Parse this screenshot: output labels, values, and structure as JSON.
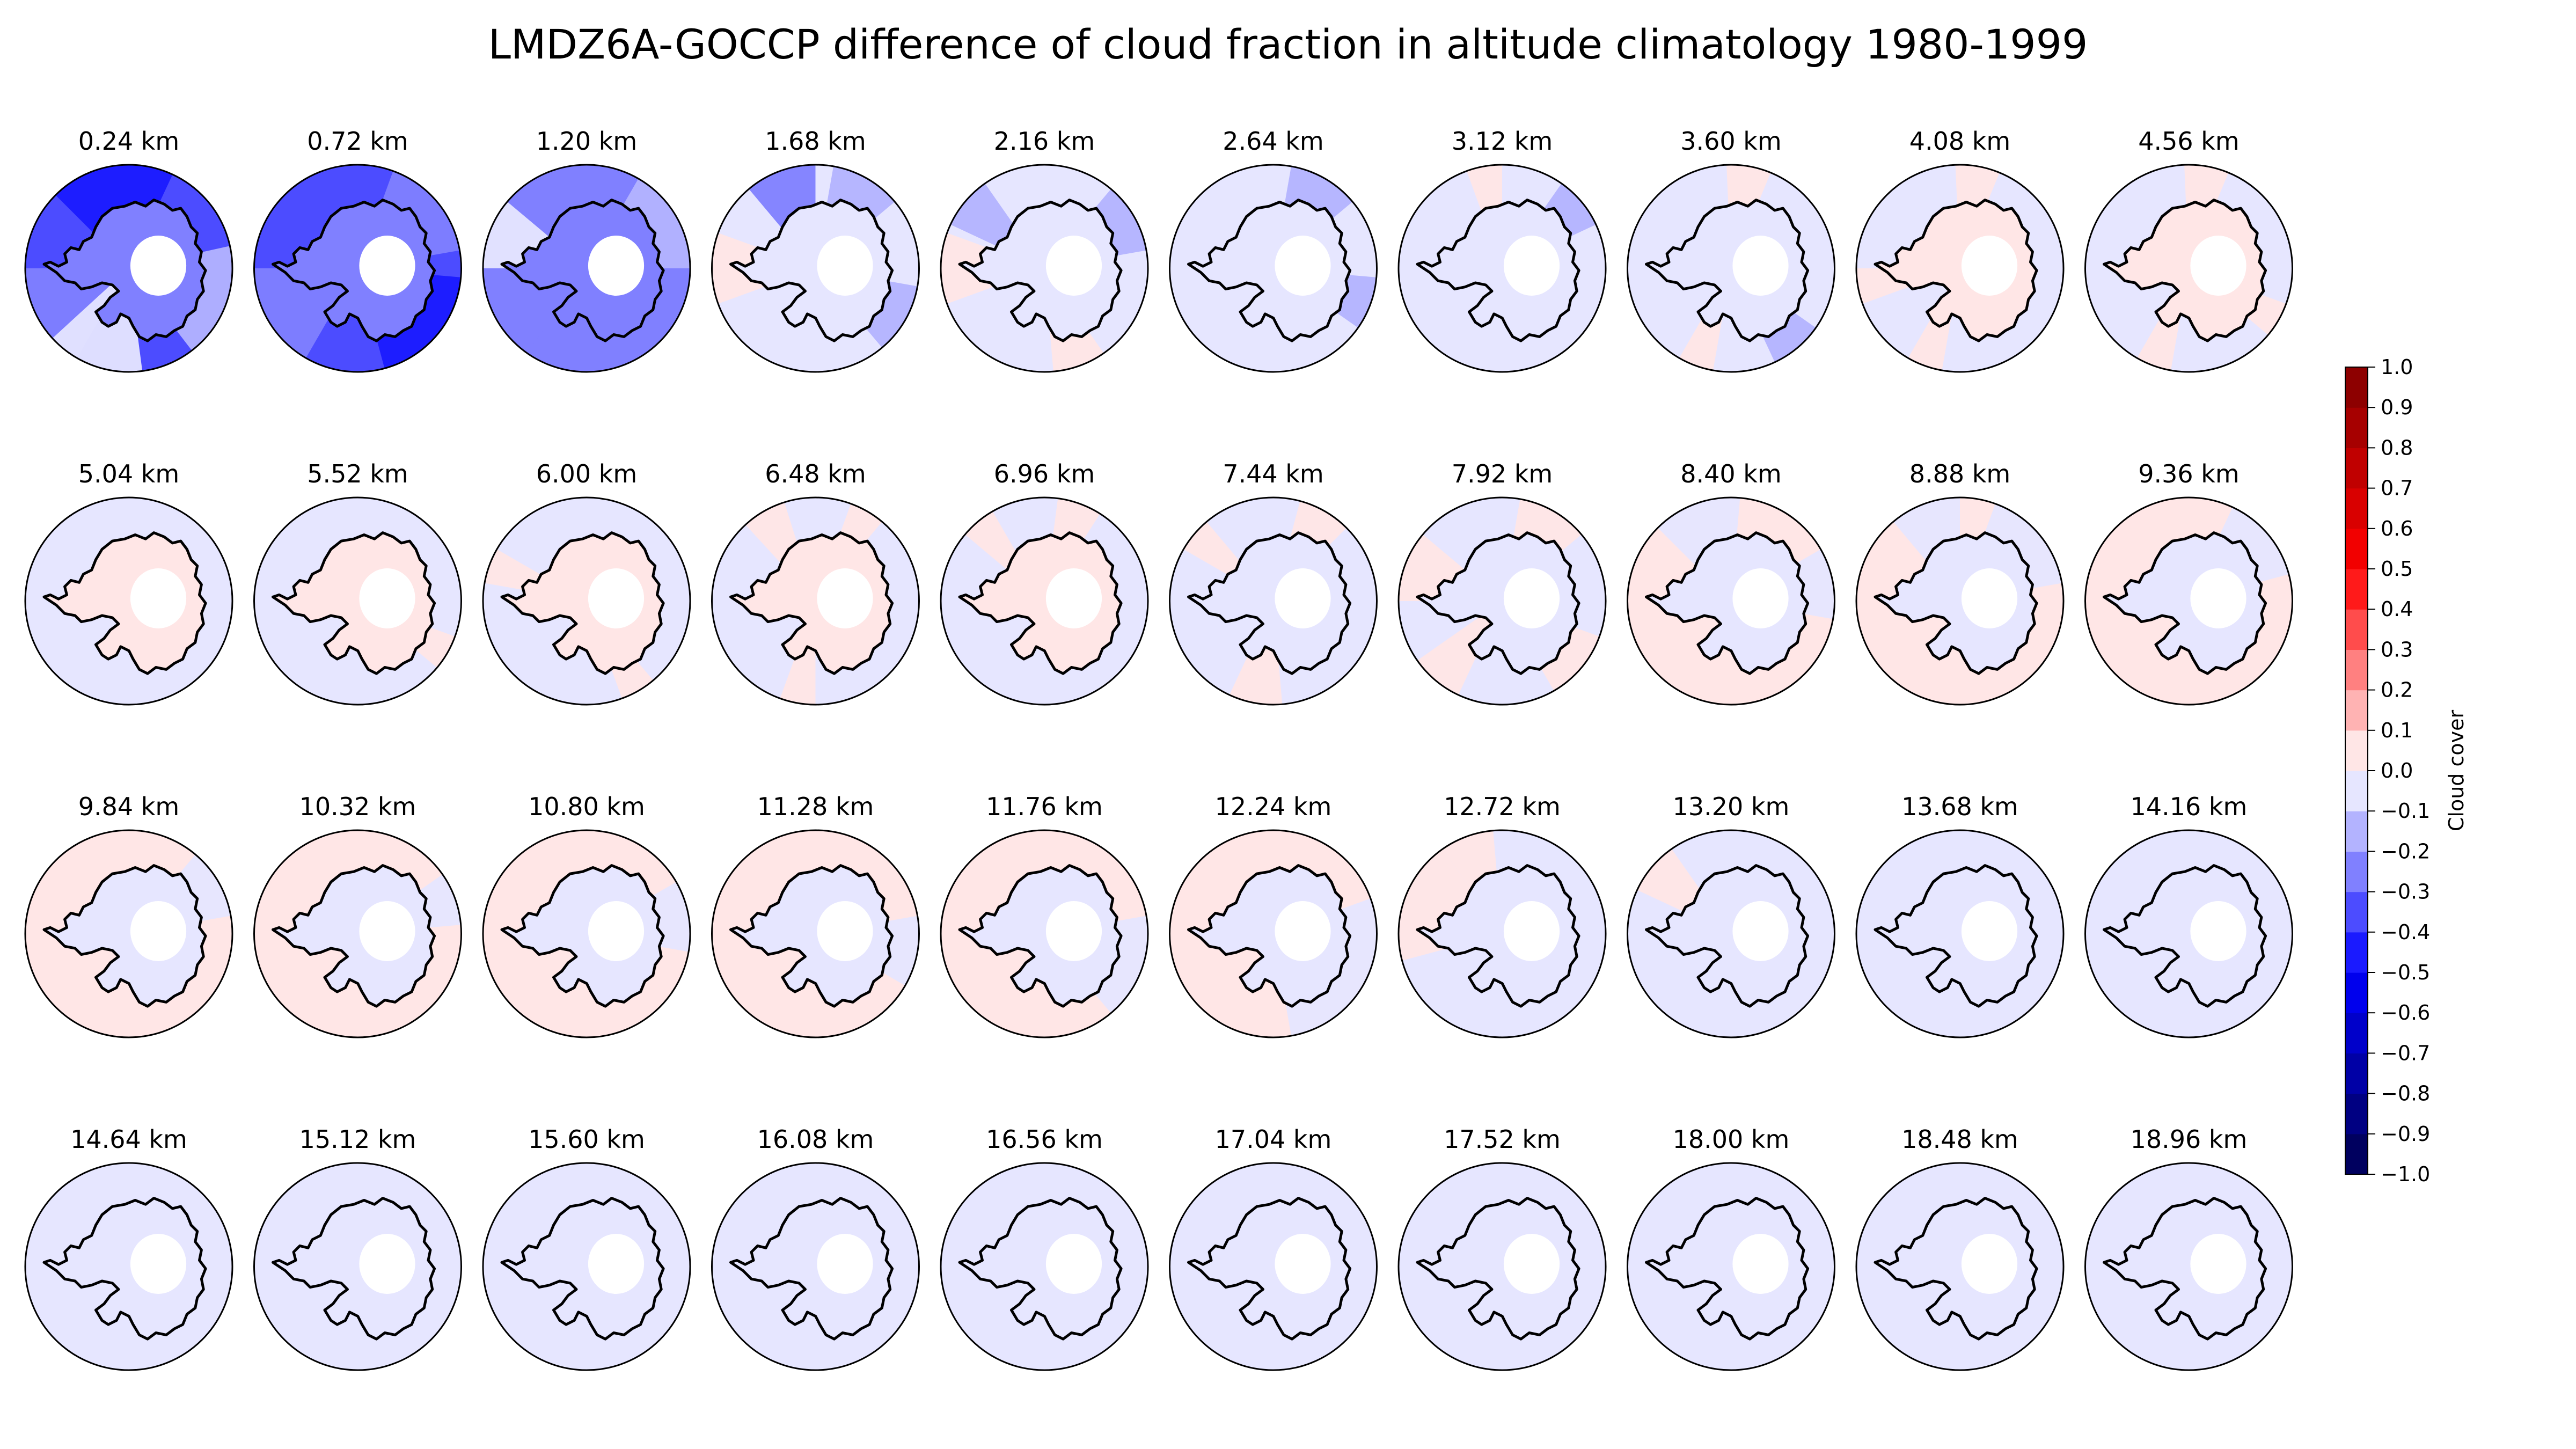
{
  "chart_data": {
    "type": "heatmap",
    "title": "LMDZ6A-GOCCP difference of cloud fraction in altitude climatology 1980-1999",
    "projection": "south-polar",
    "grid_rows": 4,
    "grid_cols": 10,
    "panels": [
      {
        "label": "0.24 km",
        "background": -0.35,
        "inner": -0.3,
        "patches": [
          [
            260,
            70,
            -0.45
          ],
          [
            330,
            55,
            -0.35
          ],
          [
            150,
            60,
            -0.25
          ],
          [
            20,
            65,
            -0.15
          ],
          [
            110,
            55,
            -0.05
          ]
        ]
      },
      {
        "label": "0.72 km",
        "background": -0.35,
        "inner": -0.3,
        "patches": [
          [
            260,
            70,
            -0.4
          ],
          [
            320,
            60,
            -0.3
          ],
          [
            150,
            60,
            -0.25
          ],
          [
            40,
            70,
            -0.45
          ]
        ]
      },
      {
        "label": "1.20 km",
        "background": -0.25,
        "inner": -0.25,
        "patches": [
          [
            330,
            60,
            -0.15
          ],
          [
            200,
            40,
            -0.05
          ],
          [
            100,
            50,
            -0.25
          ]
        ]
      },
      {
        "label": "1.68 km",
        "background": -0.05,
        "inner": -0.1,
        "patches": [
          [
            180,
            40,
            0.08
          ],
          [
            250,
            40,
            -0.25
          ],
          [
            300,
            40,
            -0.15
          ],
          [
            30,
            40,
            -0.2
          ]
        ]
      },
      {
        "label": "2.16 km",
        "background": -0.05,
        "inner": -0.1,
        "patches": [
          [
            180,
            40,
            0.08
          ],
          [
            330,
            40,
            -0.2
          ],
          [
            220,
            30,
            -0.2
          ],
          [
            70,
            30,
            0.08
          ]
        ]
      },
      {
        "label": "2.64 km",
        "background": -0.05,
        "inner": -0.05,
        "patches": [
          [
            300,
            40,
            -0.15
          ],
          [
            20,
            30,
            -0.15
          ]
        ]
      },
      {
        "label": "3.12 km",
        "background": -0.05,
        "inner": -0.05,
        "patches": [
          [
            260,
            20,
            0.08
          ],
          [
            320,
            30,
            -0.15
          ]
        ]
      },
      {
        "label": "3.60 km",
        "background": -0.05,
        "inner": -0.05,
        "patches": [
          [
            280,
            25,
            0.08
          ],
          [
            110,
            20,
            0.08
          ],
          [
            50,
            30,
            -0.15
          ]
        ]
      },
      {
        "label": "4.08 km",
        "background": -0.05,
        "inner": 0.05,
        "patches": [
          [
            280,
            25,
            0.08
          ],
          [
            110,
            20,
            0.08
          ],
          [
            170,
            20,
            0.08
          ]
        ]
      },
      {
        "label": "4.56 km",
        "background": -0.05,
        "inner": 0.05,
        "patches": [
          [
            280,
            25,
            0.08
          ],
          [
            110,
            20,
            0.08
          ],
          [
            30,
            20,
            0.08
          ]
        ]
      },
      {
        "label": "5.04 km",
        "background": -0.05,
        "inner": 0.05,
        "patches": []
      },
      {
        "label": "5.52 km",
        "background": -0.05,
        "inner": 0.05,
        "patches": [
          [
            30,
            20,
            0.08
          ]
        ]
      },
      {
        "label": "6.00 km",
        "background": -0.05,
        "inner": 0.05,
        "patches": [
          [
            200,
            20,
            0.08
          ],
          [
            60,
            20,
            0.08
          ]
        ]
      },
      {
        "label": "6.48 km",
        "background": -0.05,
        "inner": 0.05,
        "patches": [
          [
            300,
            20,
            0.08
          ],
          [
            100,
            20,
            0.08
          ],
          [
            240,
            25,
            0.08
          ]
        ]
      },
      {
        "label": "6.96 km",
        "background": -0.05,
        "inner": 0.0,
        "patches": [
          [
            290,
            25,
            0.08
          ],
          [
            230,
            20,
            0.08
          ]
        ]
      },
      {
        "label": "7.44 km",
        "background": -0.05,
        "inner": -0.05,
        "patches": [
          [
            300,
            30,
            0.08
          ],
          [
            100,
            30,
            0.08
          ],
          [
            220,
            20,
            0.08
          ]
        ]
      },
      {
        "label": "7.92 km",
        "background": -0.05,
        "inner": -0.05,
        "patches": [
          [
            300,
            40,
            0.08
          ],
          [
            40,
            40,
            0.08
          ],
          [
            200,
            40,
            0.08
          ],
          [
            130,
            30,
            0.08
          ]
        ]
      },
      {
        "label": "8.40 km",
        "background": 0.05,
        "inner": -0.05,
        "patches": [
          [
            60,
            60,
            0.08
          ],
          [
            250,
            50,
            -0.05
          ],
          [
            350,
            40,
            -0.05
          ]
        ]
      },
      {
        "label": "8.88 km",
        "background": 0.05,
        "inner": -0.05,
        "patches": [
          [
            320,
            60,
            -0.05
          ],
          [
            250,
            40,
            -0.05
          ]
        ]
      },
      {
        "label": "9.36 km",
        "background": 0.05,
        "inner": -0.05,
        "patches": [
          [
            320,
            50,
            -0.05
          ]
        ]
      },
      {
        "label": "9.84 km",
        "background": 0.05,
        "inner": -0.05,
        "patches": [
          [
            330,
            40,
            -0.05
          ]
        ]
      },
      {
        "label": "10.32 km",
        "background": 0.05,
        "inner": -0.05,
        "patches": [
          [
            340,
            30,
            -0.05
          ]
        ]
      },
      {
        "label": "10.80 km",
        "background": 0.05,
        "inner": -0.05,
        "patches": [
          [
            350,
            40,
            -0.05
          ]
        ]
      },
      {
        "label": "11.28 km",
        "background": 0.05,
        "inner": -0.05,
        "patches": [
          [
            10,
            40,
            -0.05
          ]
        ]
      },
      {
        "label": "11.76 km",
        "background": 0.05,
        "inner": -0.05,
        "patches": [
          [
            20,
            60,
            -0.05
          ]
        ]
      },
      {
        "label": "12.24 km",
        "background": 0.05,
        "inner": -0.05,
        "patches": [
          [
            30,
            100,
            -0.05
          ]
        ]
      },
      {
        "label": "12.72 km",
        "background": -0.05,
        "inner": -0.05,
        "patches": [
          [
            200,
            70,
            0.08
          ],
          [
            250,
            30,
            0.08
          ]
        ]
      },
      {
        "label": "13.20 km",
        "background": -0.05,
        "inner": -0.05,
        "patches": [
          [
            220,
            30,
            0.08
          ]
        ]
      },
      {
        "label": "13.68 km",
        "background": -0.05,
        "inner": -0.05,
        "patches": []
      },
      {
        "label": "14.16 km",
        "background": -0.05,
        "inner": -0.05,
        "patches": []
      },
      {
        "label": "14.64 km",
        "background": -0.05,
        "inner": -0.05,
        "patches": []
      },
      {
        "label": "15.12 km",
        "background": -0.05,
        "inner": -0.05,
        "patches": []
      },
      {
        "label": "15.60 km",
        "background": -0.05,
        "inner": -0.05,
        "patches": []
      },
      {
        "label": "16.08 km",
        "background": -0.05,
        "inner": -0.05,
        "patches": []
      },
      {
        "label": "16.56 km",
        "background": -0.05,
        "inner": -0.05,
        "patches": []
      },
      {
        "label": "17.04 km",
        "background": -0.05,
        "inner": -0.05,
        "patches": []
      },
      {
        "label": "17.52 km",
        "background": -0.05,
        "inner": -0.05,
        "patches": []
      },
      {
        "label": "18.00 km",
        "background": -0.05,
        "inner": -0.05,
        "patches": []
      },
      {
        "label": "18.48 km",
        "background": -0.05,
        "inner": -0.05,
        "patches": []
      },
      {
        "label": "18.96 km",
        "background": -0.05,
        "inner": -0.05,
        "patches": []
      }
    ],
    "colorbar": {
      "label": "Cloud cover",
      "range": [
        -1.0,
        1.0
      ],
      "ticks": [
        "1.0",
        "0.9",
        "0.8",
        "0.7",
        "0.6",
        "0.5",
        "0.4",
        "0.3",
        "0.2",
        "0.1",
        "0.0",
        "−0.1",
        "−0.2",
        "−0.3",
        "−0.4",
        "−0.5",
        "−0.6",
        "−0.7",
        "−0.8",
        "−0.9",
        "−1.0"
      ],
      "colormap": "seismic",
      "colors": {
        "max": "#800000",
        "high": "#ff0000",
        "mid": "#ffffff",
        "low": "#0000ff",
        "min": "#00004d"
      }
    }
  }
}
